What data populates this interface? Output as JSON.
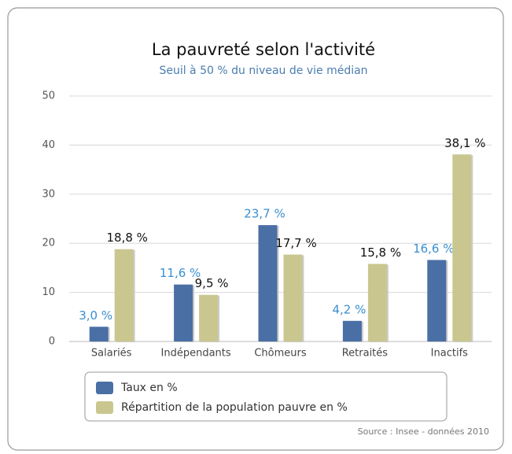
{
  "chart_data": {
    "type": "bar",
    "title": "La pauvreté selon l'activité",
    "subtitle": "Seuil à 50 % du niveau de vie médian",
    "categories": [
      "Salariés",
      "Indépendants",
      "Chômeurs",
      "Retraités",
      "Inactifs"
    ],
    "series": [
      {
        "name": "Taux en %",
        "color": "#4a6fa5",
        "values": [
          3.0,
          11.6,
          23.7,
          4.2,
          16.6
        ],
        "value_labels": [
          "3,0 %",
          "11,6 %",
          "23,7 %",
          "4,2 %",
          "16,6 %"
        ]
      },
      {
        "name": "Répartition de la population pauvre en %",
        "color": "#c9c78f",
        "values": [
          18.8,
          9.5,
          17.7,
          15.8,
          38.1
        ],
        "value_labels": [
          "18,8 %",
          "9,5 %",
          "17,7 %",
          "15,8 %",
          "38,1 %"
        ]
      }
    ],
    "ylim": [
      0,
      50
    ],
    "yticks": [
      0,
      10,
      20,
      30,
      40,
      50
    ],
    "grid": true,
    "source": "Source : Insee - données 2010"
  }
}
